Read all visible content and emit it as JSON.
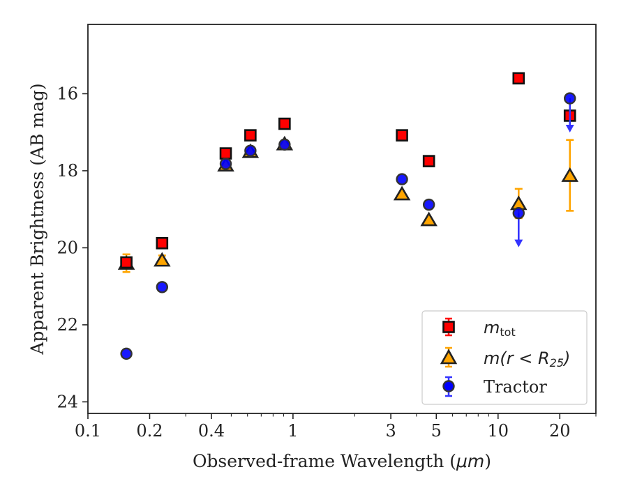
{
  "chart_data": {
    "type": "scatter",
    "xlabel_text": "Observed-frame Wavelength (",
    "xlabel_unit": "μm",
    "xlabel_close": ")",
    "ylabel": "Apparent Brightness (AB mag)",
    "x_scale": "log",
    "xlim": [
      0.1,
      30
    ],
    "ylim": [
      24.3,
      14.2
    ],
    "y_inverted": true,
    "x_ticks": [
      0.1,
      0.2,
      0.4,
      1,
      3,
      5,
      10,
      20
    ],
    "x_tick_labels": [
      "0.1",
      "0.2",
      "0.4",
      "1",
      "3",
      "5",
      "10",
      "20"
    ],
    "y_ticks": [
      16,
      18,
      20,
      22,
      24
    ],
    "y_tick_labels": [
      "16",
      "18",
      "20",
      "22",
      "24"
    ],
    "grid": false,
    "legend_position": "bottom-right",
    "series": [
      {
        "name_main": "m",
        "name_sub": "tot",
        "marker": "square",
        "color": "#ff0000",
        "edge_color": "#111111",
        "err_color": "#ff0000",
        "points": [
          {
            "x": 0.154,
            "y": 20.38,
            "err": 0.08
          },
          {
            "x": 0.23,
            "y": 19.88,
            "err": 0.05
          },
          {
            "x": 0.47,
            "y": 17.55,
            "err": 0.0
          },
          {
            "x": 0.62,
            "y": 17.08,
            "err": 0.0
          },
          {
            "x": 0.91,
            "y": 16.78,
            "err": 0.0
          },
          {
            "x": 3.4,
            "y": 17.08,
            "err": 0.0
          },
          {
            "x": 4.6,
            "y": 17.75,
            "err": 0.0
          },
          {
            "x": 12.6,
            "y": 15.6,
            "err": 0.0
          },
          {
            "x": 22.4,
            "y": 16.57,
            "err": 0.0
          }
        ]
      },
      {
        "name_main": "m(r < R",
        "name_sub": "25",
        "name_close": ")",
        "marker": "triangle",
        "color": "#ffa500",
        "edge_color": "#222222",
        "err_color": "#ffa500",
        "points": [
          {
            "x": 0.154,
            "y": 20.4,
            "err": 0.23
          },
          {
            "x": 0.23,
            "y": 20.32,
            "err": 0.12
          },
          {
            "x": 0.47,
            "y": 17.85,
            "err": 0.0
          },
          {
            "x": 0.62,
            "y": 17.5,
            "err": 0.0
          },
          {
            "x": 0.91,
            "y": 17.3,
            "err": 0.0
          },
          {
            "x": 3.4,
            "y": 18.6,
            "err": 0.0
          },
          {
            "x": 4.6,
            "y": 19.27,
            "err": 0.0
          },
          {
            "x": 12.6,
            "y": 18.85,
            "err": 0.38
          },
          {
            "x": 22.4,
            "y": 18.12,
            "err": 0.92
          }
        ]
      },
      {
        "name_main": "Tractor",
        "marker": "circle",
        "color": "#0000ff",
        "edge_color": "#333333",
        "err_color": "#3333ff",
        "points": [
          {
            "x": 0.154,
            "y": 22.75,
            "err": 0.0
          },
          {
            "x": 0.23,
            "y": 21.02,
            "err": 0.0
          },
          {
            "x": 0.47,
            "y": 17.82,
            "err": 0.0
          },
          {
            "x": 0.62,
            "y": 17.48,
            "err": 0.0
          },
          {
            "x": 0.91,
            "y": 17.32,
            "err": 0.0
          },
          {
            "x": 3.4,
            "y": 18.22,
            "err": 0.0
          },
          {
            "x": 4.6,
            "y": 18.88,
            "err": 0.0
          },
          {
            "x": 12.6,
            "y": 19.1,
            "err": 0.0,
            "upper_limit": 0.85
          },
          {
            "x": 22.4,
            "y": 16.12,
            "err": 0.0,
            "upper_limit": 0.85
          }
        ]
      }
    ]
  }
}
